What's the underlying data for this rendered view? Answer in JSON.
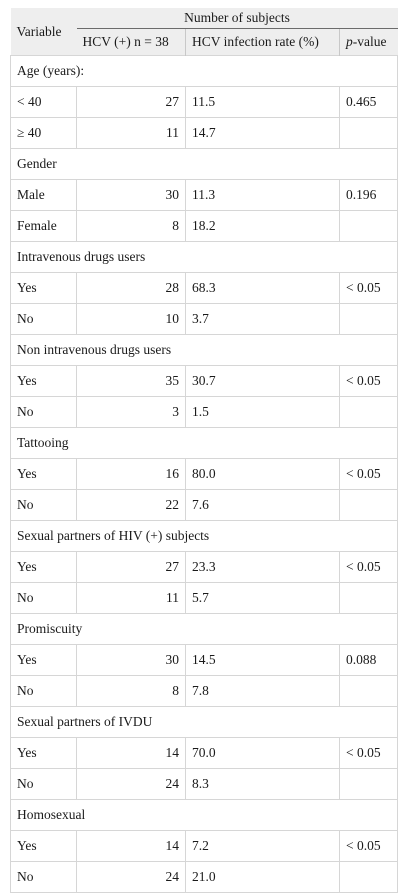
{
  "header": {
    "variable": "Variable",
    "group_title": "Number of subjects",
    "col_n": "HCV (+) n = 38",
    "col_rate": "HCV infection rate (%)",
    "col_p_italic": "p",
    "col_p_rest": "-value"
  },
  "groups": [
    {
      "title": "Age (years):",
      "rows": [
        {
          "label": "< 40",
          "n": "27",
          "rate": "11.5",
          "p": "0.465"
        },
        {
          "label": "≥ 40",
          "n": "11",
          "rate": "14.7",
          "p": ""
        }
      ]
    },
    {
      "title": "Gender",
      "rows": [
        {
          "label": "Male",
          "n": "30",
          "rate": "11.3",
          "p": "0.196"
        },
        {
          "label": "Female",
          "n": "8",
          "rate": "18.2",
          "p": ""
        }
      ]
    },
    {
      "title": "Intravenous drugs users",
      "rows": [
        {
          "label": "Yes",
          "n": "28",
          "rate": "68.3",
          "p": "< 0.05"
        },
        {
          "label": "No",
          "n": "10",
          "rate": "3.7",
          "p": ""
        }
      ]
    },
    {
      "title": "Non intravenous drugs users",
      "rows": [
        {
          "label": "Yes",
          "n": "35",
          "rate": "30.7",
          "p": "< 0.05"
        },
        {
          "label": "No",
          "n": "3",
          "rate": "1.5",
          "p": ""
        }
      ]
    },
    {
      "title": "Tattooing",
      "rows": [
        {
          "label": "Yes",
          "n": "16",
          "rate": "80.0",
          "p": "< 0.05"
        },
        {
          "label": "No",
          "n": "22",
          "rate": "7.6",
          "p": ""
        }
      ]
    },
    {
      "title": "Sexual partners of HIV (+) subjects",
      "rows": [
        {
          "label": "Yes",
          "n": "27",
          "rate": "23.3",
          "p": "< 0.05"
        },
        {
          "label": "No",
          "n": "11",
          "rate": "5.7",
          "p": ""
        }
      ]
    },
    {
      "title": "Promiscuity",
      "rows": [
        {
          "label": "Yes",
          "n": "30",
          "rate": "14.5",
          "p": "0.088"
        },
        {
          "label": "No",
          "n": "8",
          "rate": "7.8",
          "p": ""
        }
      ]
    },
    {
      "title": "Sexual partners of IVDU",
      "rows": [
        {
          "label": "Yes",
          "n": "14",
          "rate": "70.0",
          "p": "< 0.05"
        },
        {
          "label": "No",
          "n": "24",
          "rate": "8.3",
          "p": ""
        }
      ]
    },
    {
      "title": "Homosexual",
      "rows": [
        {
          "label": "Yes",
          "n": "14",
          "rate": "7.2",
          "p": "< 0.05"
        },
        {
          "label": "No",
          "n": "24",
          "rate": "21.0",
          "p": ""
        }
      ]
    }
  ]
}
